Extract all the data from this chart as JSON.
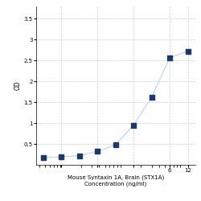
{
  "x": [
    0.047,
    0.094,
    0.188,
    0.375,
    0.75,
    1.5,
    3,
    6,
    12
  ],
  "y": [
    0.175,
    0.19,
    0.22,
    0.32,
    0.48,
    0.95,
    1.62,
    2.56,
    2.72
  ],
  "line_color": "#b8d4e8",
  "marker_color": "#1a3a6b",
  "marker_size": 14,
  "xlabel_line1": "Mouse Syntaxin 1A, Brain (STX1A)",
  "xlabel_line2": "Concentration (ng/ml)",
  "ylabel": "OD",
  "xlim_log": [
    -1.5,
    1.3
  ],
  "ylim": [
    0,
    3.8
  ],
  "yticks": [
    0.5,
    1.0,
    1.5,
    2.0,
    2.5,
    3.0,
    3.5
  ],
  "xtick_vals": [
    0.094,
    0.375,
    1.5,
    6
  ],
  "xtick_labels": [
    "",
    "",
    "",
    "6"
  ],
  "grid_color": "#cccccc",
  "bg_color": "#ffffff",
  "fig_bg_color": "#ffffff",
  "xlabel_fontsize": 5.0,
  "ylabel_fontsize": 5.5,
  "tick_fontsize": 5.0,
  "figsize": [
    2.5,
    2.5
  ],
  "dpi": 100
}
